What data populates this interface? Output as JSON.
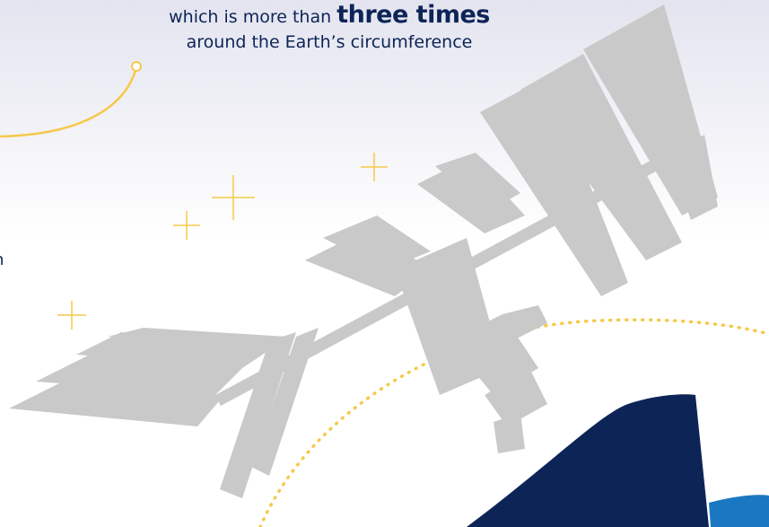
{
  "headline": {
    "prefix": "which is more than",
    "emphasis": "three times",
    "line2": "around the Earth’s circumference"
  },
  "edge_text": "n"
}
